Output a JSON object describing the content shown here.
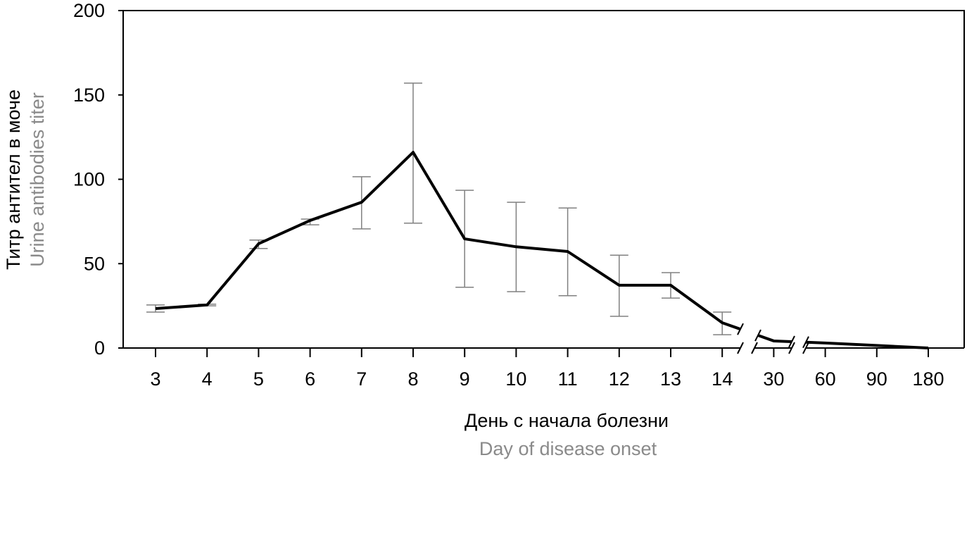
{
  "chart_data": {
    "type": "line",
    "title": "",
    "ylabel": "Титр антител в моче",
    "ylabel_en": "Urine antibodies titer",
    "xlabel": "День с начала болезни",
    "xlabel_en": "Day of disease onset",
    "ylim": [
      0,
      200
    ],
    "yticks": [
      "0",
      "50",
      "100",
      "150",
      "200"
    ],
    "ytick_values": [
      0,
      50,
      100,
      150,
      200
    ],
    "categories": [
      "3",
      "4",
      "5",
      "6",
      "7",
      "8",
      "9",
      "10",
      "11",
      "12",
      "13",
      "14",
      "30",
      "60",
      "90",
      "180"
    ],
    "axis_breaks": [
      "between 14 and 30",
      "between 30 and 60"
    ],
    "series": [
      {
        "name": "titer",
        "values": [
          23.4,
          25.5,
          61.8,
          75.6,
          86.4,
          116,
          64.7,
          60,
          57.2,
          37.2,
          37.2,
          15,
          4.2,
          3,
          1.5,
          0
        ],
        "err_high": [
          25.5,
          26,
          64,
          76.4,
          101.5,
          157,
          93.5,
          86.4,
          83,
          55,
          44.7,
          21.3,
          null,
          null,
          null,
          null
        ],
        "err_low": [
          21.3,
          25,
          59,
          73,
          70.6,
          74,
          36,
          33.4,
          31,
          18.8,
          29.6,
          7.9,
          null,
          null,
          null,
          null
        ]
      }
    ],
    "colors": {
      "line": "#000000",
      "error": "#808080",
      "secondary_text": "#8a8a8a"
    },
    "grid": false,
    "legend": "none"
  }
}
